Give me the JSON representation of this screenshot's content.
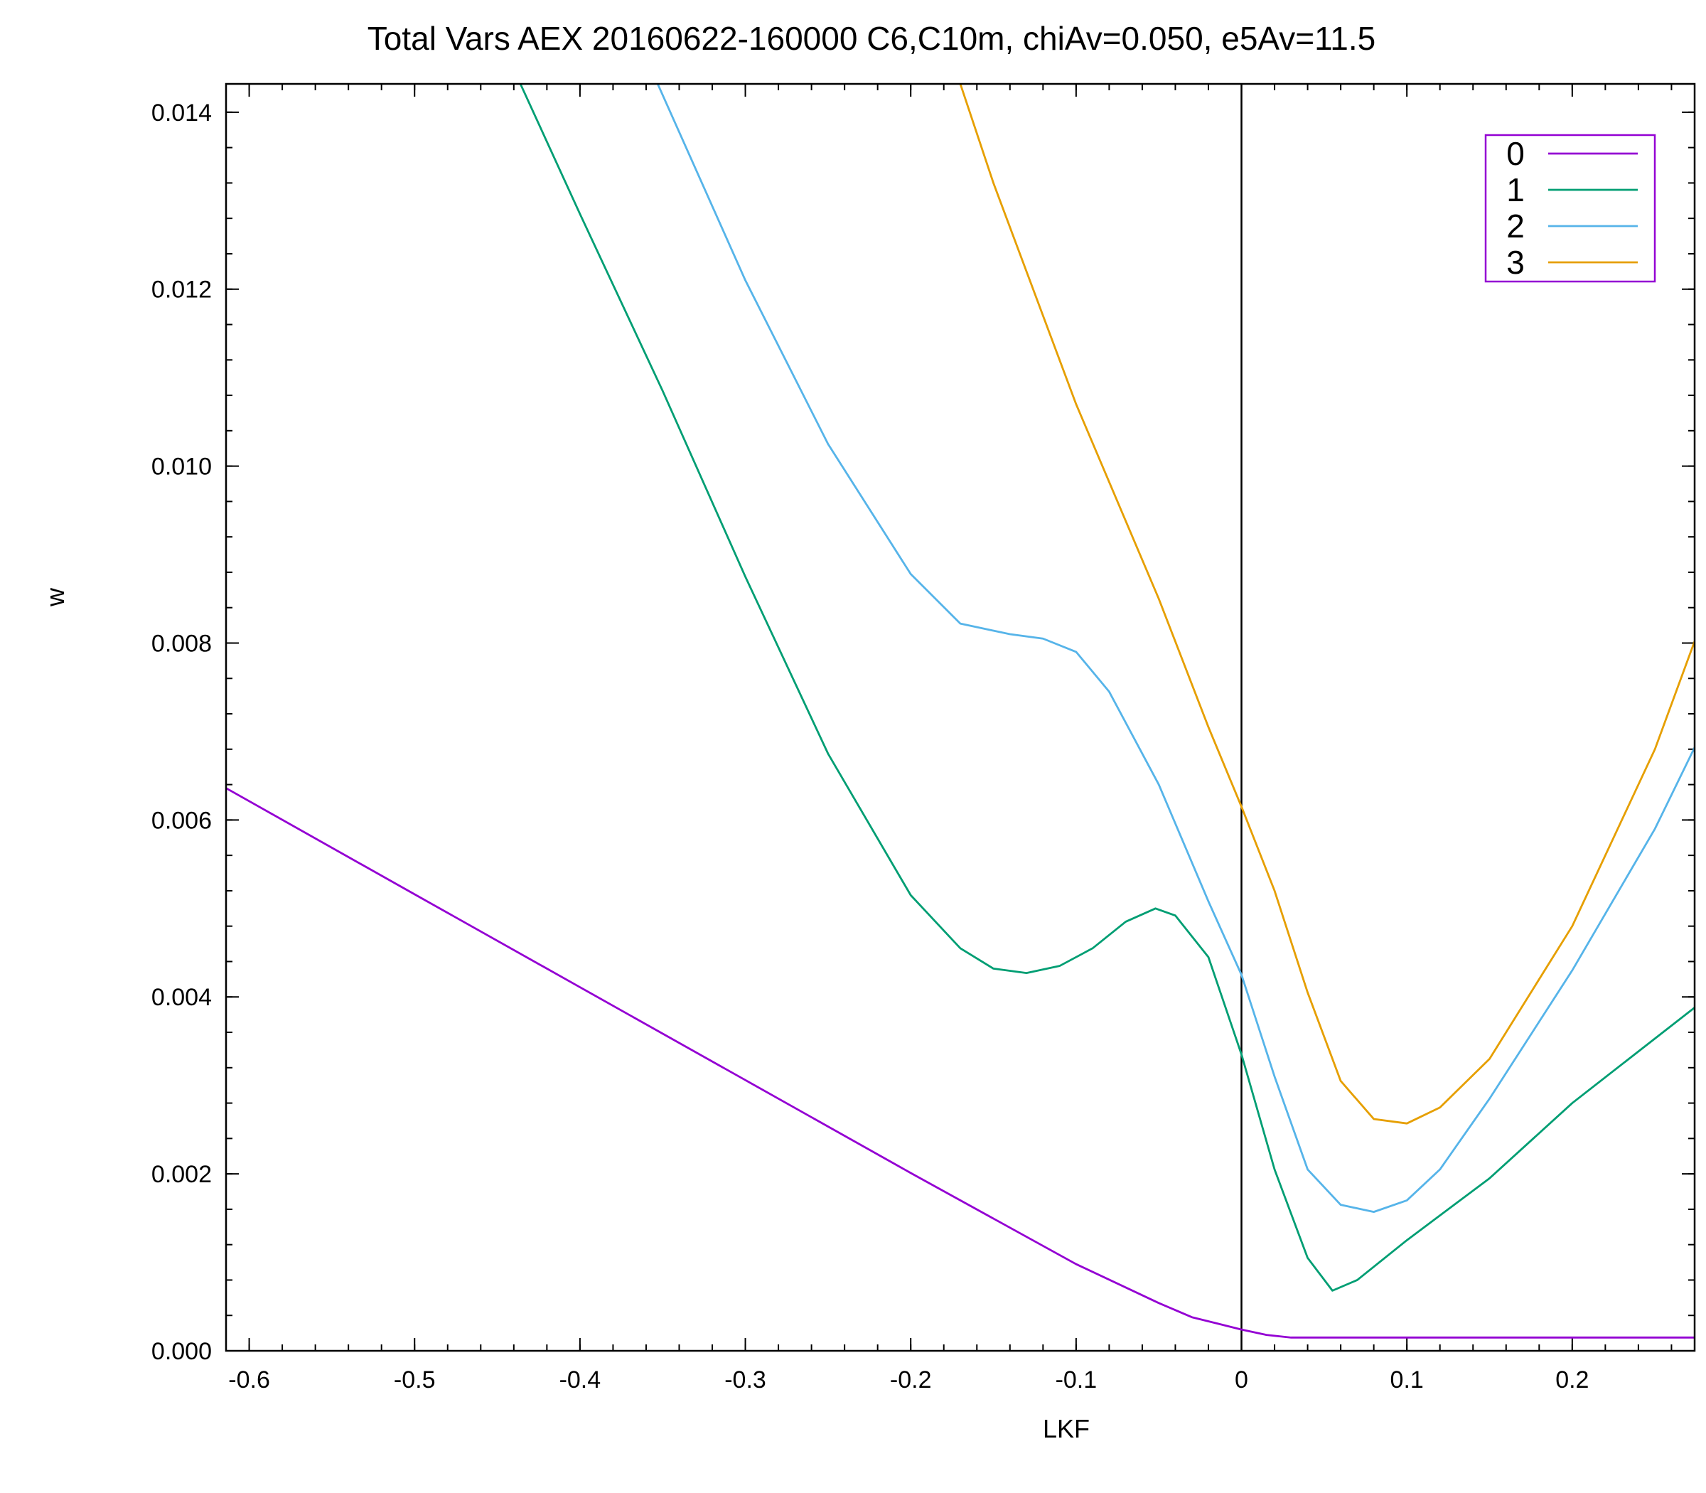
{
  "chart_data": {
    "type": "line",
    "title": "Total Vars  AEX 20160622-160000  C6,C10m, chiAv=0.050, e5Av=11.5",
    "xlabel": "LKF",
    "ylabel": "w",
    "xlim": [
      -0.614,
      0.274
    ],
    "ylim": [
      0.0,
      0.01432
    ],
    "x_ticks": [
      -0.6,
      -0.5,
      -0.4,
      -0.3,
      -0.2,
      -0.1,
      0,
      0.1,
      0.2
    ],
    "x_tick_labels": [
      "-0.6",
      "-0.5",
      "-0.4",
      "-0.3",
      "-0.2",
      "-0.1",
      "0",
      "0.1",
      "0.2"
    ],
    "y_ticks": [
      0.0,
      0.002,
      0.004,
      0.006,
      0.008,
      0.01,
      0.012,
      0.014
    ],
    "y_tick_labels": [
      "0.000",
      "0.002",
      "0.004",
      "0.006",
      "0.008",
      "0.010",
      "0.012",
      "0.014"
    ],
    "vertical_line_x": 0,
    "legend_position": "top-right",
    "grid": false,
    "series": [
      {
        "name": "0",
        "color": "#9400d3",
        "points": [
          [
            -0.614,
            0.00636
          ],
          [
            -0.5,
            0.00516
          ],
          [
            -0.4,
            0.00411
          ],
          [
            -0.3,
            0.00306
          ],
          [
            -0.2,
            0.00201
          ],
          [
            -0.1,
            0.00098
          ],
          [
            -0.05,
            0.00054
          ],
          [
            -0.03,
            0.00038
          ],
          [
            -0.015,
            0.00031
          ],
          [
            0,
            0.00024
          ],
          [
            0.015,
            0.00018
          ],
          [
            0.03,
            0.00015
          ],
          [
            0.1,
            0.00015
          ],
          [
            0.2,
            0.00015
          ],
          [
            0.274,
            0.00015
          ]
        ]
      },
      {
        "name": "1",
        "color": "#009e73",
        "points": [
          [
            -0.436,
            0.01432
          ],
          [
            -0.4,
            0.01285
          ],
          [
            -0.35,
            0.01085
          ],
          [
            -0.3,
            0.00875
          ],
          [
            -0.25,
            0.00675
          ],
          [
            -0.2,
            0.00515
          ],
          [
            -0.17,
            0.00455
          ],
          [
            -0.15,
            0.00432
          ],
          [
            -0.13,
            0.00427
          ],
          [
            -0.11,
            0.00435
          ],
          [
            -0.09,
            0.00455
          ],
          [
            -0.07,
            0.00485
          ],
          [
            -0.052,
            0.005
          ],
          [
            -0.04,
            0.00492
          ],
          [
            -0.02,
            0.00445
          ],
          [
            0,
            0.00335
          ],
          [
            0.02,
            0.00205
          ],
          [
            0.04,
            0.00105
          ],
          [
            0.055,
            0.00068
          ],
          [
            0.07,
            0.0008
          ],
          [
            0.1,
            0.00125
          ],
          [
            0.15,
            0.00195
          ],
          [
            0.2,
            0.0028
          ],
          [
            0.274,
            0.00388
          ]
        ]
      },
      {
        "name": "2",
        "color": "#56b4e9",
        "points": [
          [
            -0.353,
            0.01432
          ],
          [
            -0.3,
            0.0121
          ],
          [
            -0.25,
            0.01025
          ],
          [
            -0.2,
            0.00878
          ],
          [
            -0.17,
            0.00822
          ],
          [
            -0.14,
            0.0081
          ],
          [
            -0.12,
            0.00805
          ],
          [
            -0.1,
            0.0079
          ],
          [
            -0.08,
            0.00745
          ],
          [
            -0.05,
            0.0064
          ],
          [
            -0.02,
            0.00508
          ],
          [
            0,
            0.00425
          ],
          [
            0.02,
            0.0031
          ],
          [
            0.04,
            0.00205
          ],
          [
            0.06,
            0.00165
          ],
          [
            0.08,
            0.00157
          ],
          [
            0.1,
            0.0017
          ],
          [
            0.12,
            0.00205
          ],
          [
            0.15,
            0.00285
          ],
          [
            0.2,
            0.0043
          ],
          [
            0.25,
            0.0059
          ],
          [
            0.274,
            0.00682
          ]
        ]
      },
      {
        "name": "3",
        "color": "#e69f00",
        "points": [
          [
            -0.17,
            0.01432
          ],
          [
            -0.15,
            0.0132
          ],
          [
            -0.1,
            0.0107
          ],
          [
            -0.05,
            0.0085
          ],
          [
            -0.02,
            0.00705
          ],
          [
            0,
            0.00615
          ],
          [
            0.02,
            0.0052
          ],
          [
            0.04,
            0.00405
          ],
          [
            0.06,
            0.00305
          ],
          [
            0.08,
            0.00262
          ],
          [
            0.1,
            0.00257
          ],
          [
            0.12,
            0.00275
          ],
          [
            0.15,
            0.0033
          ],
          [
            0.2,
            0.0048
          ],
          [
            0.25,
            0.0068
          ],
          [
            0.274,
            0.00802
          ]
        ]
      }
    ]
  }
}
